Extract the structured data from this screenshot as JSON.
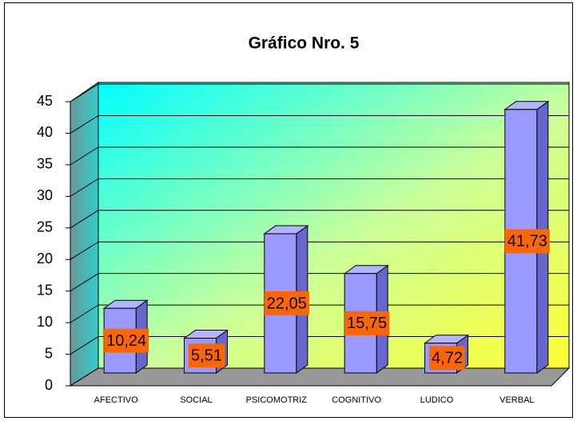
{
  "chart_data": {
    "type": "bar",
    "title": "Gráfico Nro. 5",
    "categories": [
      "AFECTIVO",
      "SOCIAL",
      "PSICOMOTRIZ",
      "COGNITIVO",
      "LUDICO",
      "VERBAL"
    ],
    "values": [
      10.24,
      5.51,
      22.05,
      15.75,
      4.72,
      41.73
    ],
    "value_labels": [
      "10,24",
      "5,51",
      "22,05",
      "15,75",
      "4,72",
      "41,73"
    ],
    "color": "#9999ff",
    "ylim": [
      0,
      45
    ],
    "yticks": [
      0,
      5,
      10,
      15,
      20,
      25,
      30,
      35,
      40,
      45
    ],
    "grid": true
  }
}
